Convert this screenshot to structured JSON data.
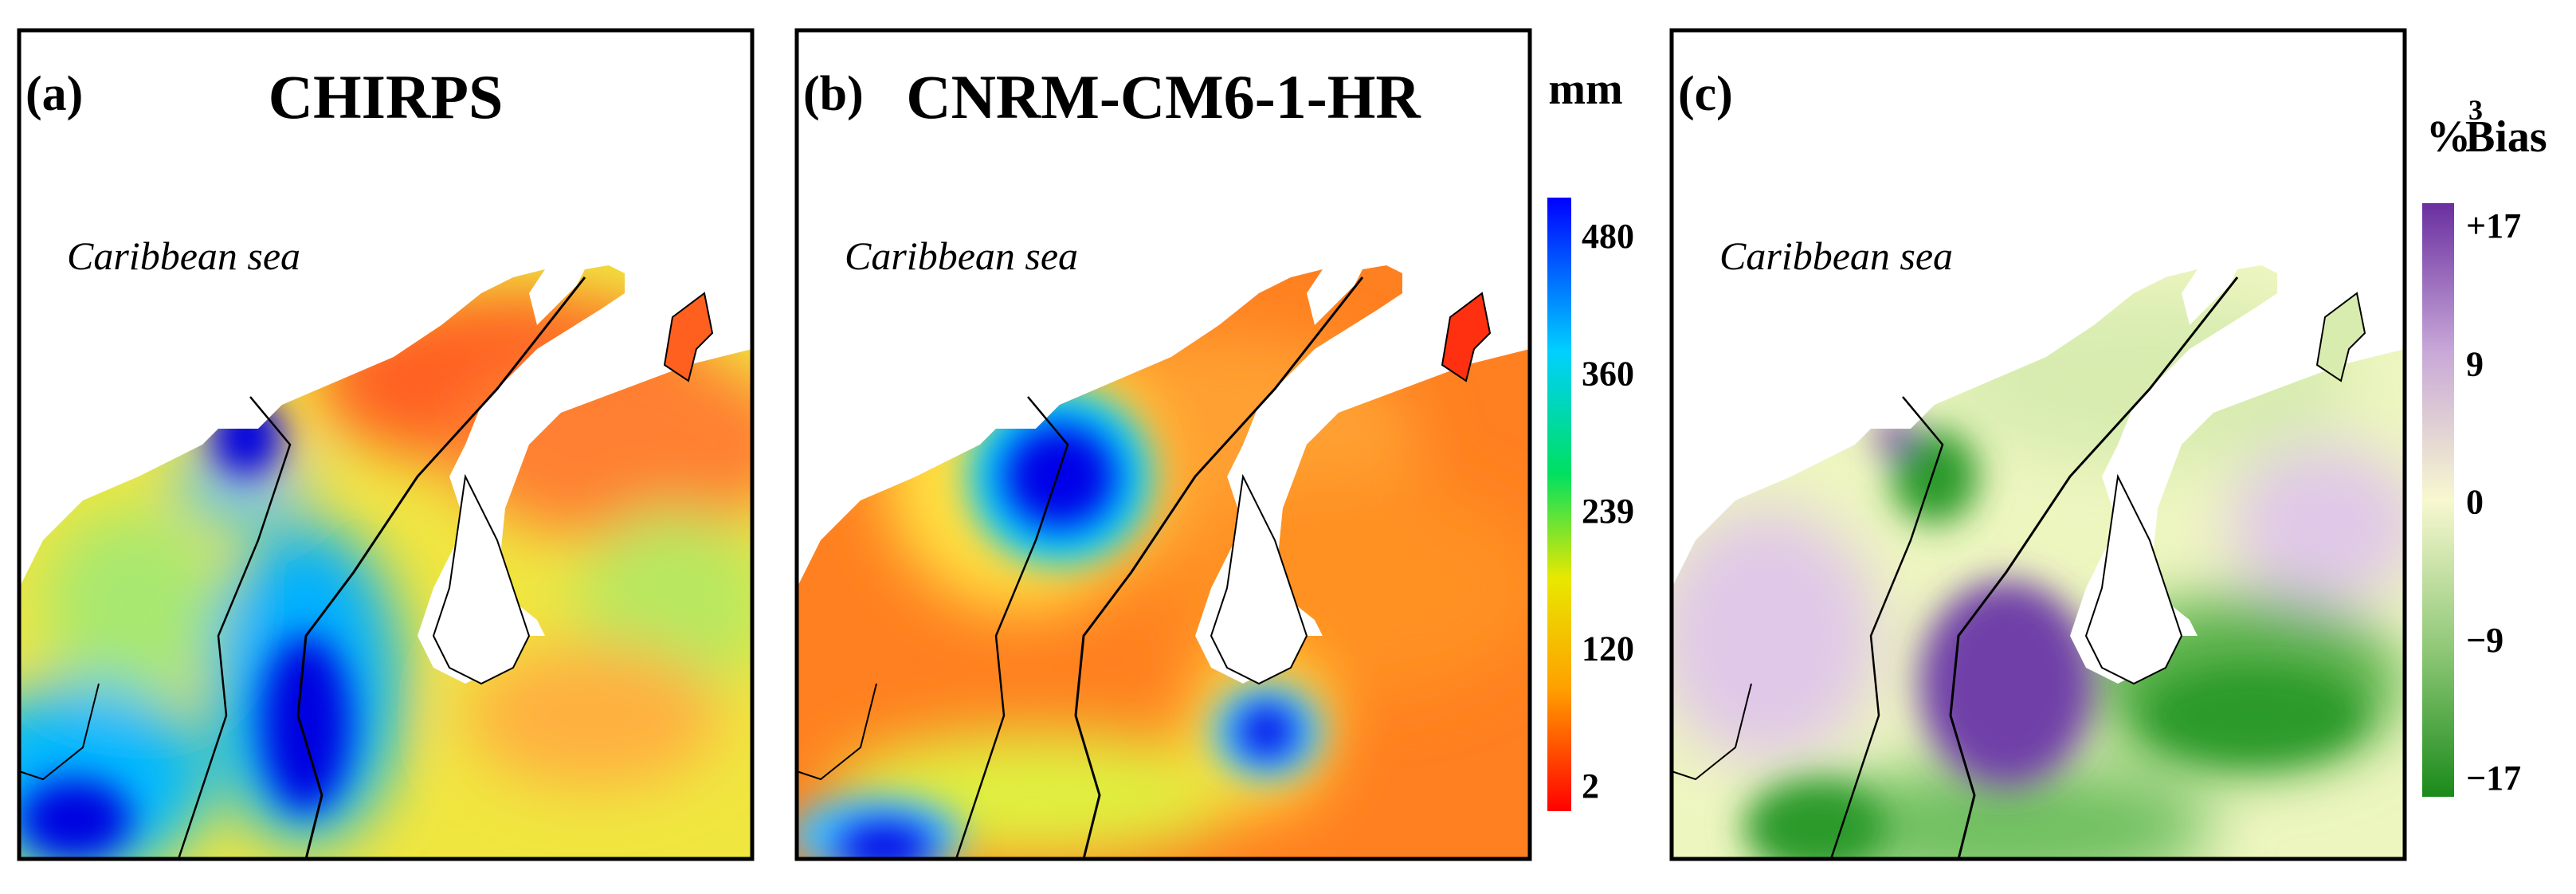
{
  "panels": [
    {
      "id": "a",
      "label": "(a)",
      "title": "CHIRPS",
      "sea_label": "Caribbean sea"
    },
    {
      "id": "b",
      "label": "(b)",
      "title": "CNRM-CM6-1-HR",
      "sea_label": "Caribbean sea"
    },
    {
      "id": "c",
      "label": "(c)",
      "title": "",
      "sea_label": "Caribbean sea"
    }
  ],
  "colorbar_precip": {
    "unit": "mm",
    "ticks": [
      "480",
      "360",
      "239",
      "120",
      "2"
    ],
    "colors": [
      "#0000ff",
      "#00d0ff",
      "#00e060",
      "#e8e800",
      "#ffa000",
      "#ff0000"
    ]
  },
  "colorbar_bias": {
    "unit_symbol": "%",
    "superscript": "3",
    "label": "Bias",
    "ticks": [
      "+17",
      "9",
      "0",
      "−9",
      "−17"
    ],
    "colors": [
      "#6a2fa0",
      "#c8a8d8",
      "#f8f8d0",
      "#90c878",
      "#1a8a1a"
    ]
  }
}
